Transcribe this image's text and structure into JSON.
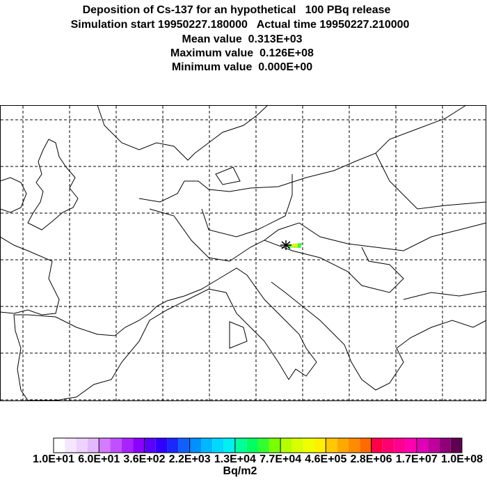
{
  "header": {
    "title": "Deposition of Cs-137 for an hypothetical   100 PBq release",
    "lines": [
      "Simulation start 19950227.180000   Actual time 19950227.210000",
      "Mean value  0.313E+03",
      "Maximum value  0.126E+08",
      "Minimum value  0.000E+00"
    ]
  },
  "colorbar": {
    "labels": [
      "1.0E+01",
      "6.0E+01",
      "3.6E+02",
      "2.2E+03",
      "1.3E+04",
      "7.7E+04",
      "4.6E+05",
      "2.8E+06",
      "1.7E+07",
      "1.0E+08"
    ],
    "unit": "Bq/m2",
    "colors": [
      "#ffffff",
      "#f6e6ff",
      "#eed2ff",
      "#e4b8ff",
      "#d47cff",
      "#c050ff",
      "#a824ff",
      "#8c00ff",
      "#5a00ff",
      "#3000ff",
      "#1a28ff",
      "#1060ff",
      "#0090ff",
      "#00b8ff",
      "#00d8ff",
      "#00f0f0",
      "#00ff9a",
      "#00ff60",
      "#30ff30",
      "#78ff00",
      "#b4ff00",
      "#d8ff00",
      "#f0ff00",
      "#fff000",
      "#ffc800",
      "#ffa800",
      "#ff8c00",
      "#ff6a00",
      "#ff0048",
      "#ff0070",
      "#ff0090",
      "#ff00b0",
      "#e000b8",
      "#c0009c",
      "#900078",
      "#600050"
    ]
  }
}
